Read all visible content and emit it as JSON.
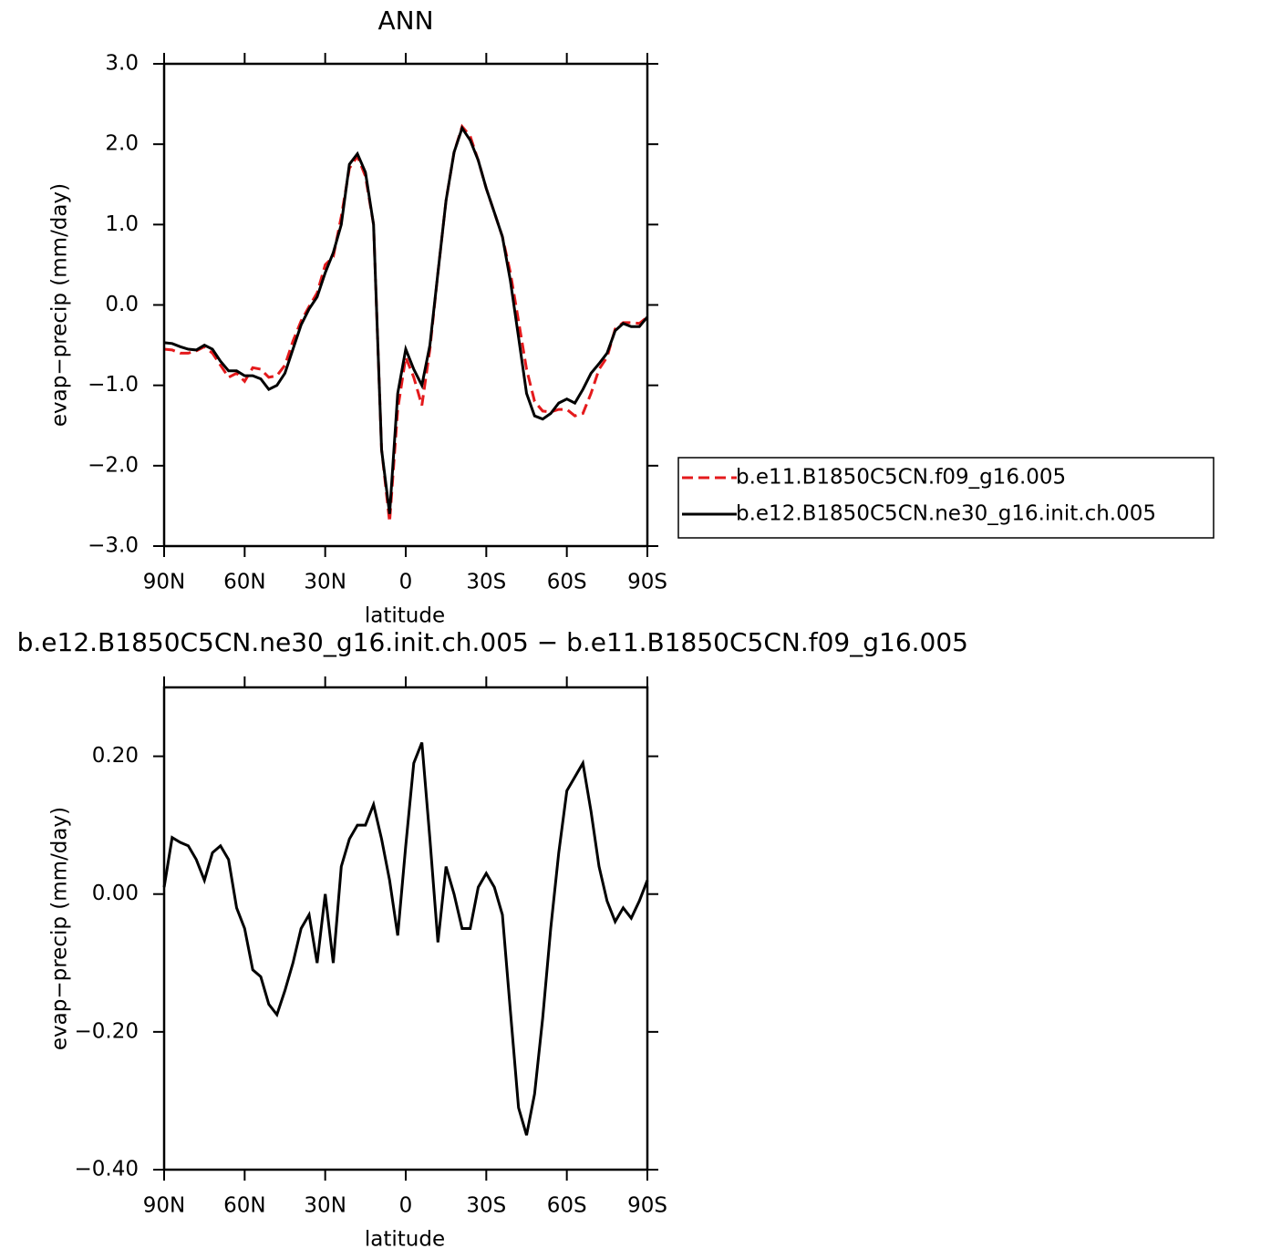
{
  "chart_data": [
    {
      "type": "line",
      "title": "ANN",
      "xlabel": "latitude",
      "ylabel": "evap−precip (mm/day)",
      "x": [
        90,
        87,
        84,
        81,
        78,
        75,
        72,
        69,
        66,
        63,
        60,
        57,
        54,
        51,
        48,
        45,
        42,
        39,
        36,
        33,
        30,
        27,
        24,
        21,
        18,
        15,
        12,
        9,
        6,
        3,
        0,
        -3,
        -6,
        -9,
        -12,
        -15,
        -18,
        -21,
        -24,
        -27,
        -30,
        -33,
        -36,
        -39,
        -42,
        -45,
        -48,
        -51,
        -54,
        -57,
        -60,
        -63,
        -66,
        -69,
        -72,
        -75,
        -78,
        -81,
        -84,
        -87,
        -90
      ],
      "series": [
        {
          "name": "b.e11.B1850C5CN.f09_g16.005",
          "color": "#e41a1c",
          "line_style": "dashed",
          "values": [
            -0.55,
            -0.56,
            -0.6,
            -0.6,
            -0.57,
            -0.52,
            -0.6,
            -0.75,
            -0.9,
            -0.85,
            -0.95,
            -0.78,
            -0.8,
            -0.9,
            -0.88,
            -0.75,
            -0.45,
            -0.2,
            -0.02,
            0.15,
            0.5,
            0.6,
            1.1,
            1.7,
            1.85,
            1.6,
            1.0,
            -1.8,
            -2.7,
            -1.3,
            -0.65,
            -0.9,
            -1.25,
            -0.55,
            0.4,
            1.3,
            1.9,
            2.22,
            2.1,
            1.8,
            1.45,
            1.15,
            0.85,
            0.4,
            -0.2,
            -0.8,
            -1.2,
            -1.32,
            -1.33,
            -1.3,
            -1.3,
            -1.38,
            -1.35,
            -1.1,
            -0.8,
            -0.65,
            -0.3,
            -0.22,
            -0.22,
            -0.23,
            -0.15
          ]
        },
        {
          "name": "b.e12.B1850C5CN.ne30_g16.init.ch.005",
          "color": "#000000",
          "line_style": "solid",
          "values": [
            -0.47,
            -0.48,
            -0.52,
            -0.55,
            -0.56,
            -0.5,
            -0.55,
            -0.7,
            -0.82,
            -0.82,
            -0.88,
            -0.88,
            -0.92,
            -1.05,
            -1.0,
            -0.85,
            -0.55,
            -0.25,
            -0.05,
            0.1,
            0.4,
            0.65,
            1.0,
            1.75,
            1.88,
            1.65,
            1.0,
            -1.8,
            -2.6,
            -1.1,
            -0.55,
            -0.8,
            -1.0,
            -0.5,
            0.4,
            1.3,
            1.9,
            2.2,
            2.05,
            1.8,
            1.45,
            1.15,
            0.85,
            0.3,
            -0.4,
            -1.1,
            -1.38,
            -1.42,
            -1.35,
            -1.22,
            -1.17,
            -1.22,
            -1.05,
            -0.85,
            -0.73,
            -0.6,
            -0.32,
            -0.23,
            -0.27,
            -0.27,
            -0.15
          ]
        }
      ],
      "xlim": [
        90,
        -90
      ],
      "xticks": [
        {
          "value": 90,
          "label": "90N"
        },
        {
          "value": 60,
          "label": "60N"
        },
        {
          "value": 30,
          "label": "30N"
        },
        0,
        {
          "value": -30,
          "label": "30S"
        },
        {
          "value": -60,
          "label": "60S"
        },
        {
          "value": -90,
          "label": "90S"
        }
      ],
      "ylim": [
        -3,
        3
      ],
      "yticks": [
        {
          "value": 3,
          "label": "3.0"
        },
        {
          "value": 2,
          "label": "2.0"
        },
        {
          "value": 1,
          "label": "1.0"
        },
        {
          "value": 0,
          "label": "0.0"
        },
        {
          "value": -1,
          "label": "−1.0"
        },
        {
          "value": -2,
          "label": "−2.0"
        },
        {
          "value": -3,
          "label": "−3.0"
        }
      ],
      "legend": "outside-right"
    },
    {
      "type": "line",
      "title": "b.e12.B1850C5CN.ne30_g16.init.ch.005 − b.e11.B1850C5CN.f09_g16.005",
      "xlabel": "latitude",
      "ylabel": "evap−precip (mm/day)",
      "x": [
        90,
        87,
        84,
        81,
        78,
        75,
        72,
        69,
        66,
        63,
        60,
        57,
        54,
        51,
        48,
        45,
        42,
        39,
        36,
        33,
        30,
        27,
        24,
        21,
        18,
        15,
        12,
        9,
        6,
        3,
        0,
        -3,
        -6,
        -9,
        -12,
        -15,
        -18,
        -21,
        -24,
        -27,
        -30,
        -33,
        -36,
        -39,
        -42,
        -45,
        -48,
        -51,
        -54,
        -57,
        -60,
        -63,
        -66,
        -69,
        -72,
        -75,
        -78,
        -81,
        -84,
        -87,
        -90
      ],
      "color": "#000000",
      "values": [
        0.01,
        0.082,
        0.075,
        0.07,
        0.05,
        0.02,
        0.06,
        0.07,
        0.05,
        -0.02,
        -0.05,
        -0.11,
        -0.12,
        -0.16,
        -0.175,
        -0.14,
        -0.1,
        -0.05,
        -0.03,
        -0.1,
        0.0,
        -0.1,
        0.04,
        0.08,
        0.1,
        0.1,
        0.13,
        0.08,
        0.02,
        -0.06,
        0.07,
        0.19,
        0.22,
        0.08,
        -0.07,
        0.04,
        0.0,
        -0.05,
        -0.05,
        0.01,
        0.03,
        0.01,
        -0.03,
        -0.17,
        -0.31,
        -0.35,
        -0.29,
        -0.18,
        -0.05,
        0.06,
        0.15,
        0.17,
        0.19,
        0.12,
        0.04,
        -0.01,
        -0.04,
        -0.02,
        -0.035,
        -0.01,
        0.02
      ],
      "xlim": [
        90,
        -90
      ],
      "xticks": [
        {
          "value": 90,
          "label": "90N"
        },
        {
          "value": 60,
          "label": "60N"
        },
        {
          "value": 30,
          "label": "30N"
        },
        0,
        {
          "value": -30,
          "label": "30S"
        },
        {
          "value": -60,
          "label": "60S"
        },
        {
          "value": -90,
          "label": "90S"
        }
      ],
      "ylim": [
        -0.4,
        0.3
      ],
      "yticks": [
        {
          "value": -0.4,
          "label": "−0.40"
        },
        {
          "value": -0.2,
          "label": "−0.20"
        },
        {
          "value": 0,
          "label": "0.00"
        },
        {
          "value": 0.2,
          "label": "0.20"
        }
      ]
    }
  ]
}
